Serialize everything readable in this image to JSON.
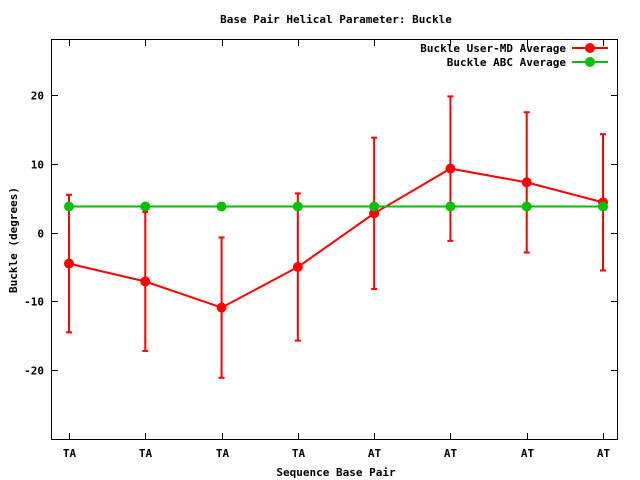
{
  "chart_data": {
    "type": "line",
    "title": "Base Pair Helical Parameter: Buckle",
    "xlabel": "Sequence Base Pair",
    "ylabel": "Buckle (degrees)",
    "categories": [
      "TA",
      "TA",
      "TA",
      "TA",
      "AT",
      "AT",
      "AT",
      "AT"
    ],
    "ylim": [
      -30,
      28
    ],
    "yticks": [
      -20,
      -10,
      0,
      10,
      20
    ],
    "grid": false,
    "legend_position": "top-right",
    "series": [
      {
        "name": "Buckle User-MD Average",
        "color": "#ff0000",
        "values": [
          -4.5,
          -7.1,
          -10.9,
          -5.0,
          2.8,
          9.3,
          7.3,
          4.4
        ],
        "error": [
          10.0,
          10.1,
          10.2,
          10.7,
          11.0,
          10.5,
          10.2,
          9.9
        ]
      },
      {
        "name": "Buckle ABC Average",
        "color": "#00c000",
        "values": [
          3.8,
          3.8,
          3.8,
          3.8,
          3.8,
          3.8,
          3.8,
          3.8
        ]
      }
    ]
  }
}
